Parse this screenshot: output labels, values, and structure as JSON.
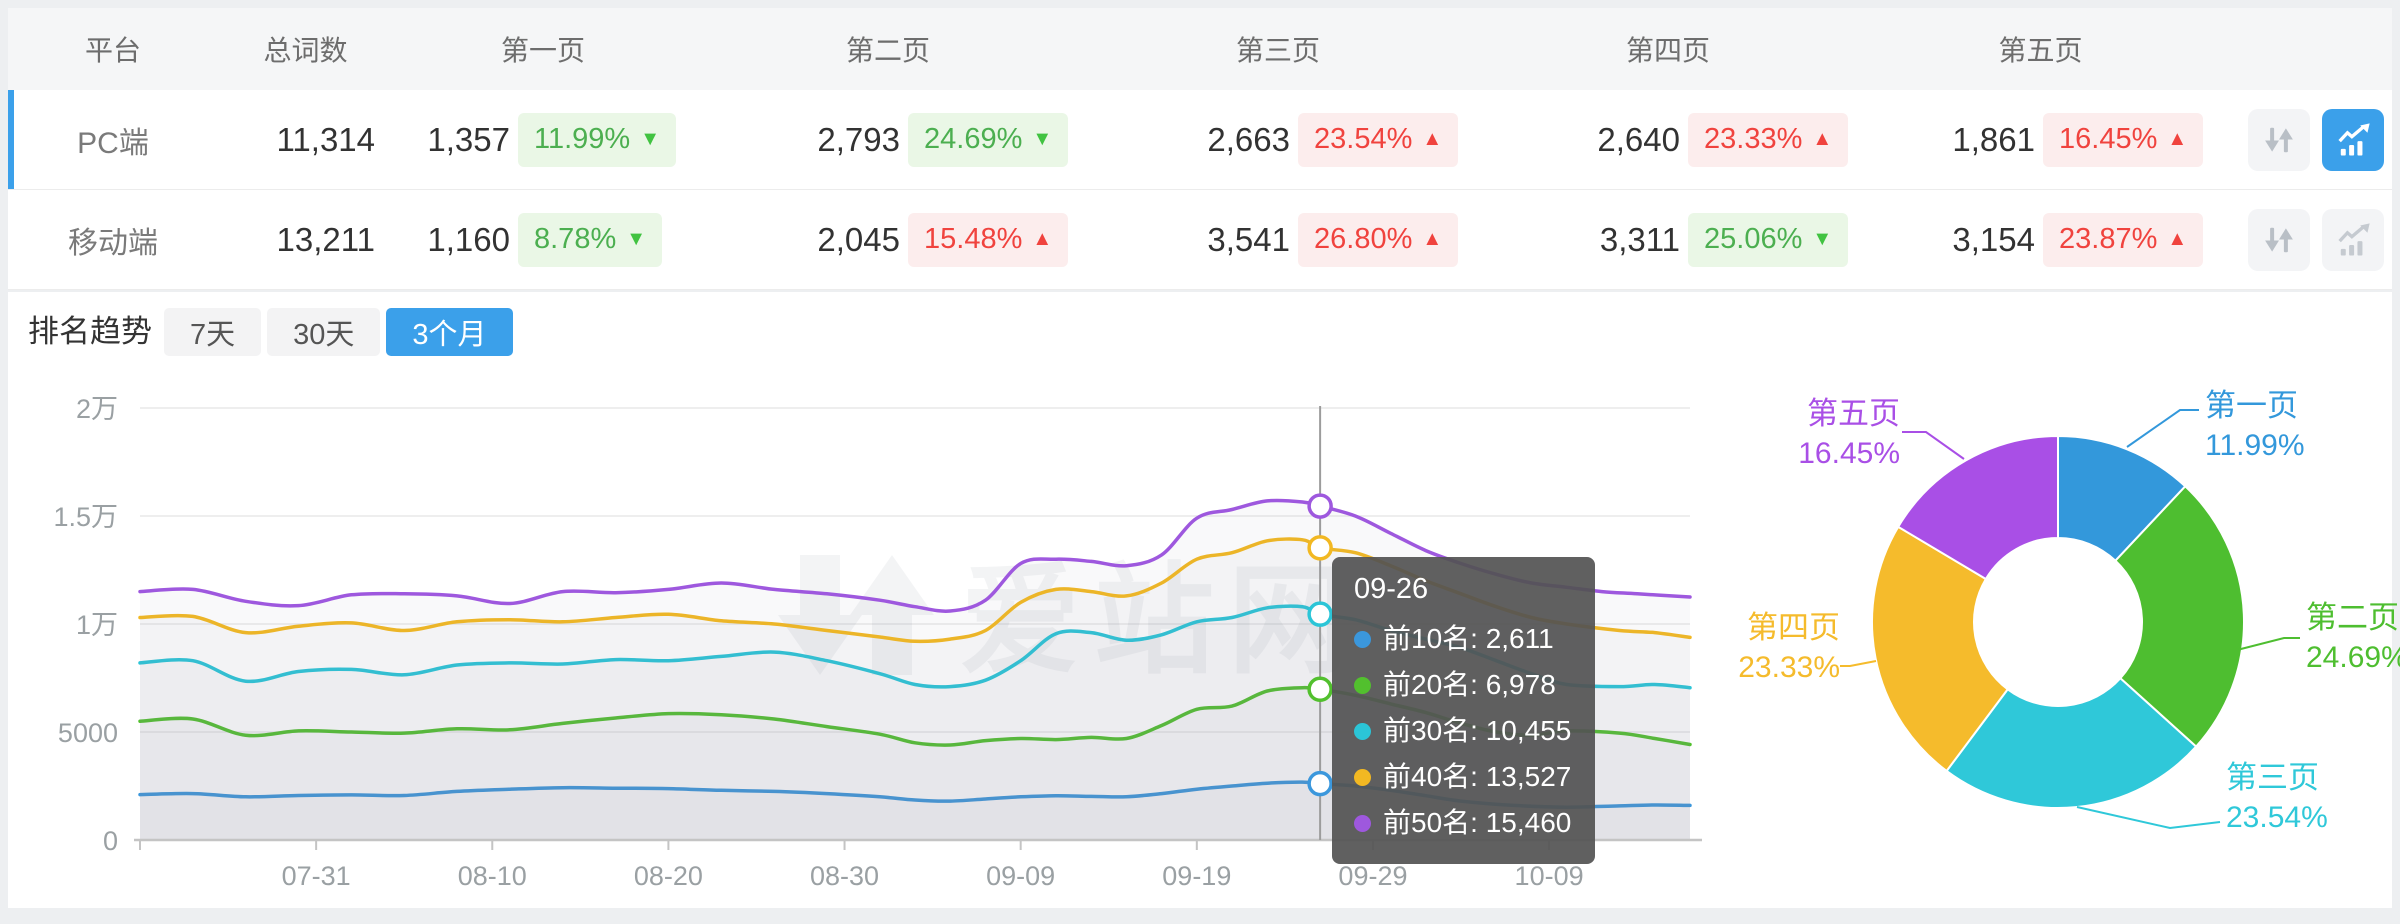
{
  "header": {
    "columns": [
      "平台",
      "总词数",
      "第一页",
      "第二页",
      "第三页",
      "第四页",
      "第五页"
    ]
  },
  "table": {
    "rows": [
      {
        "platform": "PC端",
        "total": "11,314",
        "selected": true,
        "pages": [
          {
            "count": "1,357",
            "pct": "11.99%",
            "dir": "down",
            "tone": "green"
          },
          {
            "count": "2,793",
            "pct": "24.69%",
            "dir": "down",
            "tone": "green"
          },
          {
            "count": "2,663",
            "pct": "23.54%",
            "dir": "up",
            "tone": "red"
          },
          {
            "count": "2,640",
            "pct": "23.33%",
            "dir": "up",
            "tone": "red"
          },
          {
            "count": "1,861",
            "pct": "16.45%",
            "dir": "up",
            "tone": "red"
          }
        ]
      },
      {
        "platform": "移动端",
        "total": "13,211",
        "selected": false,
        "pages": [
          {
            "count": "1,160",
            "pct": "8.78%",
            "dir": "down",
            "tone": "green"
          },
          {
            "count": "2,045",
            "pct": "15.48%",
            "dir": "up",
            "tone": "red"
          },
          {
            "count": "3,541",
            "pct": "26.80%",
            "dir": "up",
            "tone": "red"
          },
          {
            "count": "3,311",
            "pct": "25.06%",
            "dir": "down",
            "tone": "green"
          },
          {
            "count": "3,154",
            "pct": "23.87%",
            "dir": "up",
            "tone": "red"
          }
        ]
      }
    ]
  },
  "trend": {
    "label": "排名趋势",
    "tabs": [
      {
        "label": "7天",
        "active": false
      },
      {
        "label": "30天",
        "active": false
      },
      {
        "label": "3个月",
        "active": true
      }
    ]
  },
  "watermark": "爱站网",
  "tooltip": {
    "date": "09-26",
    "rows": [
      {
        "label": "前10名",
        "value": "2,611",
        "color": "#3B97DC"
      },
      {
        "label": "前20名",
        "value": "6,978",
        "color": "#52C02E"
      },
      {
        "label": "前30名",
        "value": "10,455",
        "color": "#2BC5D7"
      },
      {
        "label": "前40名",
        "value": "13,527",
        "color": "#F2B822"
      },
      {
        "label": "前50名",
        "value": "15,460",
        "color": "#9E58DE"
      }
    ]
  },
  "colors": {
    "accent": "#3BA0EA",
    "down_green": "#4CAF50",
    "down_green_bg": "#EAF7E6",
    "up_red": "#F0433E",
    "up_red_bg": "#FCEDED",
    "axis_text": "#9AA0A3",
    "grid": "#E9E9E9"
  },
  "chart_data": [
    {
      "type": "line",
      "title": "排名趋势 (3个月)",
      "ylim": [
        0,
        20000
      ],
      "y_ticks": [
        "0",
        "5000",
        "1万",
        "1.5万",
        "2万"
      ],
      "x_ticks": [
        "07-31",
        "08-10",
        "08-20",
        "08-30",
        "09-09",
        "09-19",
        "09-29",
        "10-09"
      ],
      "x_tick_days": [
        10,
        20,
        30,
        40,
        50,
        60,
        70,
        80
      ],
      "x_range_days": 88,
      "grid": true,
      "crosshair_day": 67,
      "crosshair_date": "09-26",
      "series": [
        {
          "name": "前10名",
          "color": "#3B97DC",
          "points": [
            [
              0,
              2100
            ],
            [
              3,
              2150
            ],
            [
              6,
              2000
            ],
            [
              9,
              2060
            ],
            [
              12,
              2090
            ],
            [
              15,
              2060
            ],
            [
              18,
              2250
            ],
            [
              21,
              2350
            ],
            [
              24,
              2420
            ],
            [
              27,
              2400
            ],
            [
              30,
              2380
            ],
            [
              33,
              2300
            ],
            [
              36,
              2250
            ],
            [
              39,
              2150
            ],
            [
              42,
              2000
            ],
            [
              44,
              1850
            ],
            [
              46,
              1800
            ],
            [
              48,
              1900
            ],
            [
              50,
              2000
            ],
            [
              52,
              2050
            ],
            [
              54,
              2020
            ],
            [
              56,
              2000
            ],
            [
              58,
              2150
            ],
            [
              60,
              2350
            ],
            [
              62,
              2500
            ],
            [
              64,
              2630
            ],
            [
              66,
              2680
            ],
            [
              67,
              2611
            ],
            [
              69,
              2500
            ],
            [
              71,
              2300
            ],
            [
              73,
              2050
            ],
            [
              75,
              1800
            ],
            [
              78,
              1600
            ],
            [
              81,
              1520
            ],
            [
              84,
              1580
            ],
            [
              86,
              1620
            ],
            [
              88,
              1600
            ]
          ]
        },
        {
          "name": "前20名",
          "color": "#52C02E",
          "points": [
            [
              0,
              5500
            ],
            [
              3,
              5600
            ],
            [
              6,
              4850
            ],
            [
              9,
              5050
            ],
            [
              12,
              5000
            ],
            [
              15,
              4950
            ],
            [
              18,
              5150
            ],
            [
              21,
              5100
            ],
            [
              24,
              5400
            ],
            [
              27,
              5650
            ],
            [
              30,
              5850
            ],
            [
              33,
              5800
            ],
            [
              36,
              5600
            ],
            [
              39,
              5250
            ],
            [
              42,
              4900
            ],
            [
              44,
              4500
            ],
            [
              46,
              4400
            ],
            [
              48,
              4600
            ],
            [
              50,
              4700
            ],
            [
              52,
              4650
            ],
            [
              54,
              4750
            ],
            [
              56,
              4700
            ],
            [
              58,
              5300
            ],
            [
              60,
              6050
            ],
            [
              62,
              6200
            ],
            [
              64,
              6900
            ],
            [
              66,
              7050
            ],
            [
              67,
              6978
            ],
            [
              69,
              6700
            ],
            [
              71,
              6300
            ],
            [
              73,
              5900
            ],
            [
              75,
              5400
            ],
            [
              77,
              5000
            ],
            [
              79,
              4850
            ],
            [
              81,
              5050
            ],
            [
              84,
              4950
            ],
            [
              86,
              4700
            ],
            [
              88,
              4420
            ]
          ]
        },
        {
          "name": "前30名",
          "color": "#2BC5D7",
          "points": [
            [
              0,
              8200
            ],
            [
              3,
              8300
            ],
            [
              6,
              7350
            ],
            [
              9,
              7800
            ],
            [
              12,
              7900
            ],
            [
              15,
              7650
            ],
            [
              18,
              8100
            ],
            [
              21,
              8200
            ],
            [
              24,
              8150
            ],
            [
              27,
              8350
            ],
            [
              30,
              8300
            ],
            [
              33,
              8500
            ],
            [
              36,
              8700
            ],
            [
              39,
              8300
            ],
            [
              42,
              7700
            ],
            [
              44,
              7200
            ],
            [
              46,
              7100
            ],
            [
              48,
              7400
            ],
            [
              50,
              8300
            ],
            [
              52,
              9550
            ],
            [
              54,
              9600
            ],
            [
              56,
              9250
            ],
            [
              58,
              9500
            ],
            [
              60,
              10100
            ],
            [
              62,
              10300
            ],
            [
              64,
              10750
            ],
            [
              66,
              10800
            ],
            [
              67,
              10455
            ],
            [
              69,
              10200
            ],
            [
              71,
              9700
            ],
            [
              73,
              9300
            ],
            [
              75,
              8900
            ],
            [
              77,
              8300
            ],
            [
              79,
              7700
            ],
            [
              81,
              7200
            ],
            [
              84,
              7100
            ],
            [
              86,
              7200
            ],
            [
              88,
              7050
            ]
          ]
        },
        {
          "name": "前40名",
          "color": "#F2B822",
          "points": [
            [
              0,
              10300
            ],
            [
              3,
              10350
            ],
            [
              6,
              9600
            ],
            [
              9,
              9900
            ],
            [
              12,
              10050
            ],
            [
              15,
              9700
            ],
            [
              18,
              10100
            ],
            [
              21,
              10200
            ],
            [
              24,
              10100
            ],
            [
              27,
              10300
            ],
            [
              30,
              10450
            ],
            [
              33,
              10150
            ],
            [
              36,
              10000
            ],
            [
              39,
              9700
            ],
            [
              42,
              9400
            ],
            [
              44,
              9200
            ],
            [
              46,
              9300
            ],
            [
              48,
              9700
            ],
            [
              50,
              11000
            ],
            [
              52,
              11600
            ],
            [
              54,
              11500
            ],
            [
              56,
              11300
            ],
            [
              58,
              11900
            ],
            [
              60,
              13000
            ],
            [
              62,
              13300
            ],
            [
              64,
              13850
            ],
            [
              66,
              13900
            ],
            [
              67,
              13527
            ],
            [
              69,
              13300
            ],
            [
              71,
              12700
            ],
            [
              73,
              12000
            ],
            [
              75,
              11400
            ],
            [
              77,
              10800
            ],
            [
              79,
              10300
            ],
            [
              81,
              10000
            ],
            [
              84,
              9700
            ],
            [
              86,
              9600
            ],
            [
              88,
              9380
            ]
          ]
        },
        {
          "name": "前50名",
          "color": "#9E58DE",
          "points": [
            [
              0,
              11500
            ],
            [
              3,
              11600
            ],
            [
              6,
              11050
            ],
            [
              9,
              10850
            ],
            [
              12,
              11350
            ],
            [
              15,
              11400
            ],
            [
              18,
              11300
            ],
            [
              21,
              10950
            ],
            [
              24,
              11500
            ],
            [
              27,
              11450
            ],
            [
              30,
              11600
            ],
            [
              33,
              11900
            ],
            [
              36,
              11600
            ],
            [
              39,
              11400
            ],
            [
              42,
              11100
            ],
            [
              44,
              10800
            ],
            [
              46,
              10600
            ],
            [
              48,
              11100
            ],
            [
              50,
              12800
            ],
            [
              52,
              13000
            ],
            [
              54,
              12900
            ],
            [
              56,
              12700
            ],
            [
              58,
              13200
            ],
            [
              60,
              14900
            ],
            [
              62,
              15300
            ],
            [
              64,
              15700
            ],
            [
              66,
              15650
            ],
            [
              67,
              15460
            ],
            [
              69,
              15000
            ],
            [
              71,
              14200
            ],
            [
              73,
              13400
            ],
            [
              75,
              12800
            ],
            [
              77,
              12300
            ],
            [
              79,
              11900
            ],
            [
              81,
              11700
            ],
            [
              83,
              11500
            ],
            [
              85,
              11400
            ],
            [
              88,
              11250
            ]
          ]
        }
      ]
    },
    {
      "type": "pie",
      "donut": true,
      "labels": [
        "第一页",
        "第二页",
        "第三页",
        "第四页",
        "第五页"
      ],
      "values": [
        11.99,
        24.69,
        23.54,
        23.33,
        16.45
      ],
      "display": [
        "11.99%",
        "24.69%",
        "23.54%",
        "23.33%",
        "16.45%"
      ],
      "colors": [
        "#3398DB",
        "#4EBE30",
        "#2FC8D9",
        "#F5BB2C",
        "#A94FE6"
      ]
    }
  ]
}
